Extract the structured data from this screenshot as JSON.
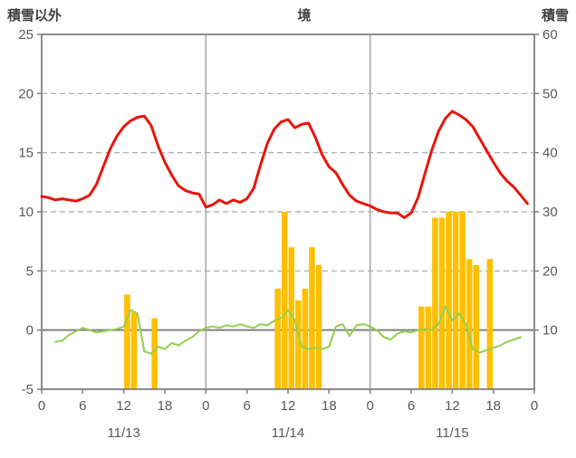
{
  "header": {
    "title": "境",
    "left_axis_title": "積雪以外",
    "right_axis_title": "積雪"
  },
  "colors": {
    "temp_line": "#e8160c",
    "green_line": "#92d050",
    "bars": "#ffc000",
    "grid": "#a6a6a6",
    "zero_line": "#7f7f7f",
    "border": "#808080",
    "axis_text": "#595959"
  },
  "chart_data": {
    "type": "combo-line-bar",
    "title": "境",
    "left_ylabel": "積雪以外",
    "right_ylabel": "積雪",
    "left_ylim": [
      -5,
      25
    ],
    "right_ylim": [
      0,
      60
    ],
    "left_yticks": [
      25,
      20,
      15,
      10,
      5,
      0,
      -5
    ],
    "left_gridlines": [
      20,
      15,
      10,
      5
    ],
    "right_yticks": [
      60,
      50,
      40,
      30,
      20,
      10
    ],
    "x_hours_total": 72,
    "x_tick_hours": [
      0,
      6,
      12,
      18,
      24,
      30,
      36,
      42,
      48,
      54,
      60,
      66,
      72
    ],
    "x_tick_labels": [
      "0",
      "6",
      "12",
      "18",
      "0",
      "6",
      "12",
      "18",
      "0",
      "6",
      "12",
      "18",
      "0"
    ],
    "day_boundaries": [
      24,
      48
    ],
    "day_label_hours": [
      12,
      36,
      60
    ],
    "day_labels": [
      "11/13",
      "11/14",
      "11/15"
    ],
    "legend": "none",
    "grid": "dashed-horizontal",
    "series": [
      {
        "name": "red-line-left-axis",
        "type": "line",
        "axis": "left",
        "values": [
          11.3,
          11.2,
          11.0,
          11.1,
          11.0,
          10.9,
          11.1,
          11.4,
          12.3,
          13.8,
          15.3,
          16.4,
          17.2,
          17.7,
          18.0,
          18.1,
          17.3,
          15.6,
          14.2,
          13.1,
          12.2,
          11.8,
          11.6,
          11.5,
          10.4,
          10.6,
          11.0,
          10.7,
          11.0,
          10.8,
          11.1,
          12.0,
          14.0,
          15.8,
          17.0,
          17.6,
          17.8,
          17.1,
          17.4,
          17.5,
          16.3,
          14.8,
          13.8,
          13.3,
          12.3,
          11.4,
          10.9,
          10.7,
          10.5,
          10.2,
          10.0,
          9.9,
          9.9,
          9.5,
          9.9,
          11.2,
          13.2,
          15.2,
          16.8,
          17.9,
          18.5,
          18.2,
          17.8,
          17.2,
          16.2,
          15.2,
          14.2,
          13.3,
          12.6,
          12.1,
          11.4,
          10.7
        ]
      },
      {
        "name": "green-line-left-axis",
        "type": "line",
        "axis": "left",
        "values": [
          null,
          null,
          -1.0,
          -0.9,
          -0.4,
          -0.1,
          0.2,
          0.0,
          -0.2,
          -0.1,
          0.0,
          0.1,
          0.3,
          1.7,
          1.4,
          -1.8,
          -2.0,
          -1.4,
          -1.6,
          -1.1,
          -1.3,
          -0.9,
          -0.6,
          -0.1,
          0.2,
          0.3,
          0.2,
          0.4,
          0.3,
          0.5,
          0.3,
          0.2,
          0.5,
          0.4,
          0.8,
          1.0,
          1.7,
          0.8,
          -1.4,
          -1.6,
          -1.5,
          -1.6,
          -1.4,
          0.3,
          0.5,
          -0.5,
          0.4,
          0.5,
          0.3,
          0.0,
          -0.6,
          -0.8,
          -0.3,
          -0.1,
          -0.2,
          0.0,
          0.1,
          0.0,
          0.5,
          2.0,
          0.8,
          1.4,
          0.5,
          -1.6,
          -1.9,
          -1.7,
          -1.5,
          -1.3,
          -1.0,
          -0.8,
          -0.6,
          null
        ]
      },
      {
        "name": "orange-bars-right-axis",
        "type": "bar",
        "axis": "right",
        "values": [
          0,
          0,
          0,
          0,
          0,
          0,
          0,
          0,
          0,
          0,
          0,
          0,
          16,
          13,
          0,
          0,
          12,
          0,
          0,
          0,
          0,
          0,
          0,
          0,
          0,
          0,
          0,
          0,
          0,
          0,
          0,
          0,
          0,
          0,
          17,
          30,
          24,
          15,
          17,
          24,
          21,
          0,
          0,
          0,
          0,
          0,
          0,
          0,
          0,
          0,
          0,
          0,
          0,
          0,
          0,
          14,
          14,
          29,
          29,
          30,
          30,
          30,
          22,
          21,
          0,
          22,
          0,
          0,
          0,
          0,
          0,
          0
        ]
      }
    ]
  }
}
